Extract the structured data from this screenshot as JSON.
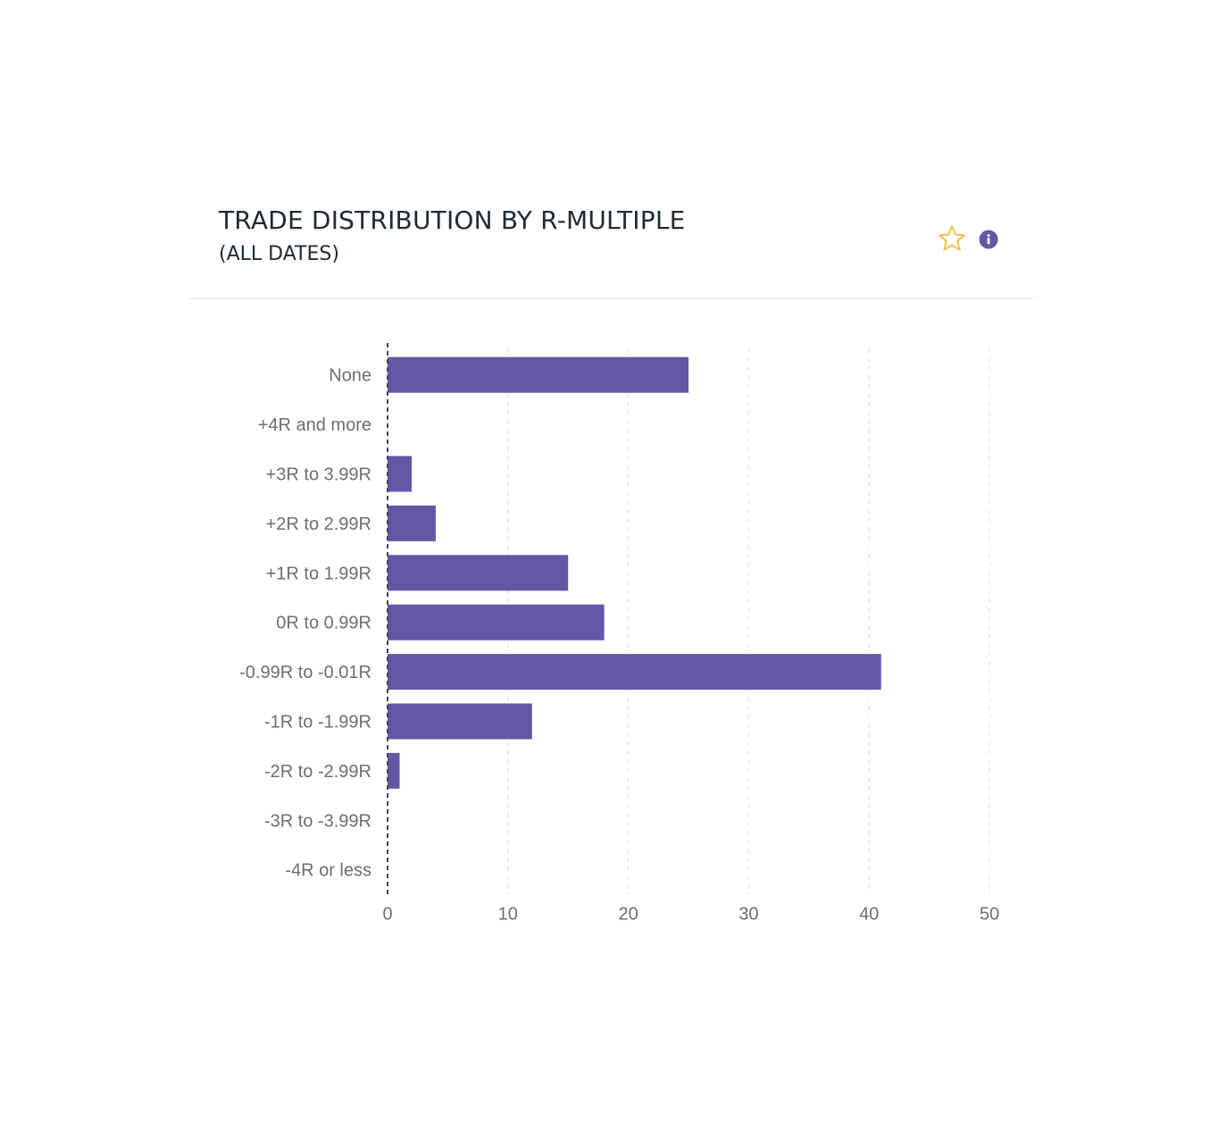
{
  "header": {
    "title": "TRADE DISTRIBUTION BY R-MULTIPLE",
    "subtitle": "(ALL DATES)",
    "favorite_icon": "star-outline-icon",
    "info_icon": "info-icon"
  },
  "colors": {
    "bar": "#6357a5",
    "star": "#f2c14e",
    "info": "#6357a5",
    "axis": "#3a4a5a",
    "grid": "#e5e5e5"
  },
  "chart_data": {
    "type": "bar",
    "orientation": "horizontal",
    "categories": [
      "None",
      "+4R and more",
      "+3R to 3.99R",
      "+2R to 2.99R",
      "+1R to 1.99R",
      "0R to 0.99R",
      "-0.99R to -0.01R",
      "-1R to -1.99R",
      "-2R to -2.99R",
      "-3R to -3.99R",
      "-4R or less"
    ],
    "values": [
      25,
      0,
      2,
      4,
      15,
      18,
      41,
      12,
      1,
      0,
      0
    ],
    "xlim": [
      0,
      50
    ],
    "xticks": [
      "0",
      "10",
      "20",
      "30",
      "40",
      "50"
    ],
    "grid": true,
    "legend": false
  }
}
